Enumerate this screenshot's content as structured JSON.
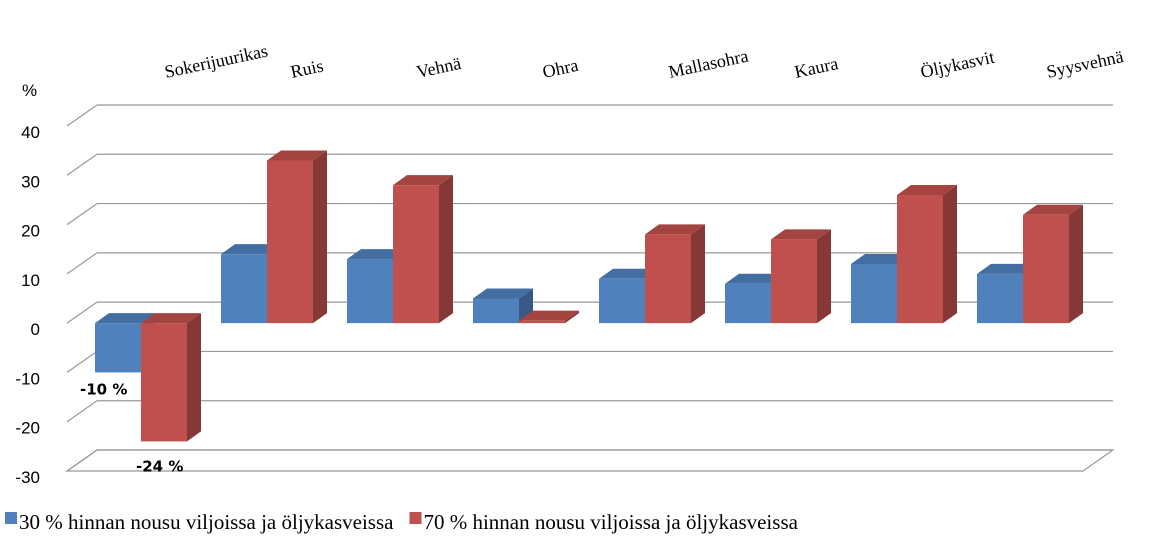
{
  "chart_data": {
    "type": "bar3d",
    "ylabel": "%",
    "categories": [
      "Sokerijuurikas",
      "Ruis",
      "Vehnä",
      "Ohra",
      "Mallasohra",
      "Kaura",
      "Öljykasvit",
      "Syysvehnä"
    ],
    "series": [
      {
        "name": "30 % hinnan nousu viljoissa ja öljykasveissa",
        "color": "#4f81bd",
        "values": [
          -10,
          14,
          13,
          5,
          9,
          8,
          12,
          10
        ],
        "value_labels": [
          "-10 %",
          null,
          null,
          null,
          null,
          null,
          null,
          null
        ]
      },
      {
        "name": "70 % hinnan nousu viljoissa ja öljykasveissa",
        "color": "#c0504d",
        "values": [
          -24,
          33,
          28,
          0.5,
          18,
          17,
          26,
          22
        ],
        "value_labels": [
          "-24 %",
          null,
          null,
          null,
          null,
          null,
          null,
          null
        ]
      }
    ],
    "ylim": [
      -30,
      40
    ],
    "yticks": [
      -30,
      -20,
      -10,
      0,
      10,
      20,
      30,
      40
    ],
    "grid": true,
    "legend": "bottom"
  }
}
